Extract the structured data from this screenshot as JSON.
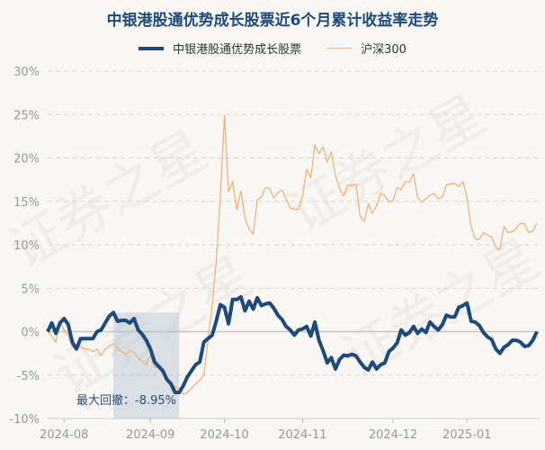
{
  "watermark": "证券之星",
  "chart_data": {
    "type": "line",
    "title": "中银港股通优势成长股票近6个月累计收益率走势",
    "xlabel": "",
    "ylabel": "",
    "ylim": [
      -10,
      30
    ],
    "yticks": [
      -10,
      -5,
      0,
      5,
      10,
      15,
      20,
      25,
      30
    ],
    "ytick_labels": [
      "-10%",
      "-5%",
      "0%",
      "5%",
      "10%",
      "15%",
      "20%",
      "25%",
      "30%"
    ],
    "x_unit": "trading-day index",
    "xticks": [
      {
        "index": 4,
        "label": "2024-08"
      },
      {
        "index": 25,
        "label": "2024-09"
      },
      {
        "index": 43,
        "label": "2024-10"
      },
      {
        "index": 62,
        "label": "2024-11"
      },
      {
        "index": 84,
        "label": "2024-12"
      },
      {
        "index": 102,
        "label": "2025-01"
      }
    ],
    "grid": true,
    "legend_position": "top-center",
    "series": [
      {
        "name": "中银港股通优势成长股票",
        "color": "#1d4a7a",
        "values": [
          0,
          1.0,
          -0.2,
          1.0,
          1.5,
          0.8,
          -1.2,
          -2.0,
          -0.8,
          -0.8,
          -0.8,
          -0.8,
          0,
          0.2,
          1.0,
          1.8,
          2.2,
          1.2,
          1.3,
          1.3,
          1.0,
          1.5,
          0.2,
          -0.3,
          -1.0,
          -2.0,
          -3.5,
          -4.0,
          -4.5,
          -5.5,
          -6.0,
          -7.0,
          -7.0,
          -6.2,
          -5.2,
          -4.5,
          -3.8,
          -3.5,
          -1.2,
          -0.8,
          -0.4,
          1.2,
          3.1,
          2.8,
          0.9,
          3.7,
          3.7,
          4.0,
          2.4,
          3.5,
          2.6,
          3.9,
          3.0,
          3.2,
          3.3,
          2.7,
          1.9,
          1.4,
          0.6,
          0.2,
          -0.4,
          0.2,
          0.3,
          0.6,
          -0.5,
          1.1,
          -1.0,
          -2.2,
          -3.6,
          -3.0,
          -4.3,
          -3.2,
          -2.7,
          -2.8,
          -2.6,
          -2.8,
          -3.5,
          -4.1,
          -4.4,
          -3.5,
          -4.3,
          -3.8,
          -3.6,
          -2.3,
          -1.9,
          -1.3,
          0.2,
          -0.4,
          -0.1,
          0.6,
          -0.2,
          0.3,
          -0.1,
          1.1,
          0.6,
          0.2,
          0.8,
          1.9,
          1.7,
          1.7,
          2.8,
          3.0,
          3.3,
          1.2,
          1.1,
          0.7,
          -0.1,
          -0.6,
          -0.9,
          -2.0,
          -2.5,
          -1.8,
          -1.5,
          -1.0,
          -1.0,
          -1.2,
          -1.7,
          -1.6,
          -1.0,
          0.0
        ]
      },
      {
        "name": "沪深300",
        "color": "#f0b27a",
        "values": [
          0,
          -0.5,
          -1.2,
          1.1,
          0.2,
          -0.5,
          -1.8,
          -1.6,
          -1.8,
          -2.0,
          -2.0,
          -2.3,
          -2.0,
          -2.8,
          -2.0,
          -1.7,
          -1.4,
          -2.0,
          -2.3,
          -2.6,
          -2.2,
          -2.4,
          -3.0,
          -3.4,
          -3.8,
          -2.6,
          -4.1,
          -4.2,
          -4.6,
          -5.5,
          -6.2,
          -6.3,
          -6.6,
          -7.2,
          -7.0,
          -6.5,
          -6.0,
          -5.6,
          -5.0,
          -1.0,
          3.0,
          8.0,
          15.5,
          24.9,
          16.1,
          17.3,
          14.0,
          16.2,
          13.1,
          11.8,
          11.2,
          15.2,
          15.5,
          16.6,
          16.5,
          15.4,
          16.0,
          16.3,
          15.3,
          14.2,
          14.1,
          14.1,
          15.6,
          18.7,
          17.7,
          21.5,
          20.5,
          21.3,
          19.5,
          20.7,
          18.0,
          16.5,
          15.6,
          16.9,
          16.8,
          17.0,
          13.3,
          12.7,
          14.7,
          13.6,
          14.5,
          15.9,
          15.7,
          14.9,
          15.1,
          16.6,
          16.3,
          17.3,
          17.2,
          18.2,
          15.4,
          14.9,
          15.3,
          15.7,
          15.9,
          15.3,
          15.5,
          16.9,
          17.0,
          17.1,
          16.7,
          17.3,
          15.4,
          12.1,
          10.7,
          10.6,
          11.4,
          11.1,
          10.9,
          9.7,
          9.4,
          12.1,
          11.4,
          11.5,
          11.9,
          12.5,
          12.4,
          11.4,
          11.6,
          12.5
        ]
      }
    ],
    "annotations": [
      {
        "label": "最大回撤：-8.95%",
        "from_index": 16,
        "to_index": 32
      }
    ]
  }
}
